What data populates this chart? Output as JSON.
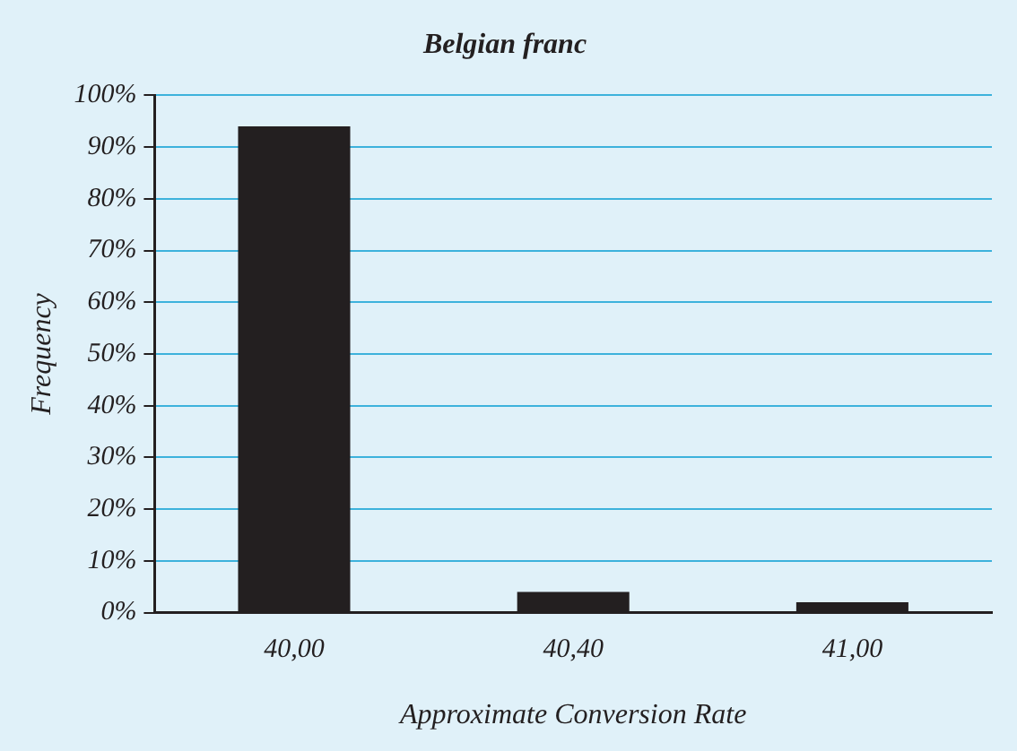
{
  "chart_data": {
    "type": "bar",
    "title": "Belgian franc",
    "xlabel": "Approximate Conversion Rate",
    "ylabel": "Frequency",
    "categories": [
      "40,00",
      "40,40",
      "41,00"
    ],
    "values": [
      94,
      4,
      2
    ],
    "color": "#231f20",
    "ylim": [
      0,
      100
    ],
    "yticks": [
      {
        "value": 0,
        "label": "0%"
      },
      {
        "value": 10,
        "label": "10%"
      },
      {
        "value": 20,
        "label": "20%"
      },
      {
        "value": 30,
        "label": "30%"
      },
      {
        "value": 40,
        "label": "40%"
      },
      {
        "value": 50,
        "label": "50%"
      },
      {
        "value": 60,
        "label": "60%"
      },
      {
        "value": 70,
        "label": "70%"
      },
      {
        "value": 80,
        "label": "80%"
      },
      {
        "value": 90,
        "label": "90%"
      },
      {
        "value": 100,
        "label": "100%"
      }
    ],
    "grid": "y",
    "legend": false
  }
}
